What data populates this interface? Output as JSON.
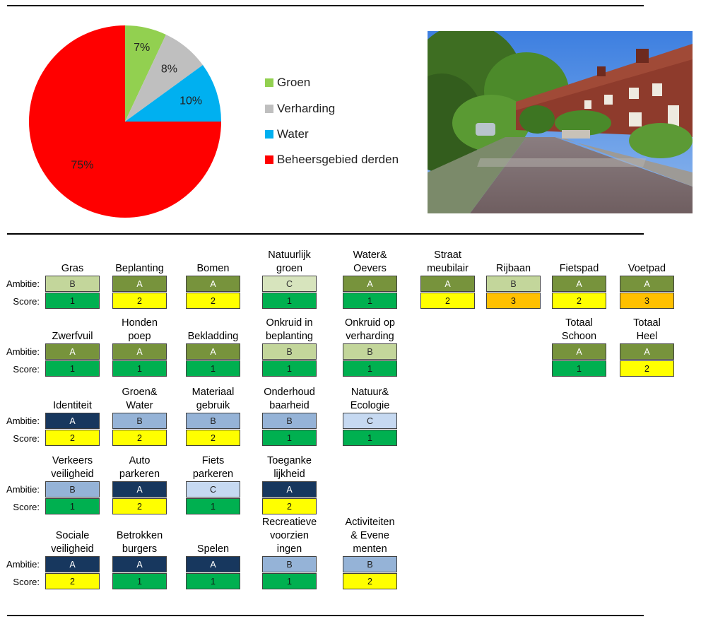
{
  "chart_data": {
    "type": "pie",
    "labels": [
      "Groen",
      "Verharding",
      "Water",
      "Beheersgebied derden"
    ],
    "values": [
      7,
      8,
      10,
      75
    ],
    "value_labels": [
      "7%",
      "8%",
      "10%",
      "75%"
    ],
    "colors": [
      "#92D050",
      "#BFBFBF",
      "#00B0F0",
      "#FF0000"
    ],
    "legend_position": "right"
  },
  "row_labels": {
    "ambitie": "Ambitie:",
    "score": "Score:"
  },
  "colors": {
    "green_dark": "#77933C",
    "green_mid": "#C3D69B",
    "green_light": "#D7E4BD",
    "navy": "#17375E",
    "blue_mid": "#95B3D7",
    "blue_light": "#C6D9F1",
    "score_green": "#00B050",
    "score_yellow": "#FFFF00",
    "score_orange": "#FFC000"
  },
  "rows": [
    {
      "cells": [
        {
          "title": [
            "Gras"
          ],
          "ambitie": "B",
          "score": "1"
        },
        {
          "title": [
            "Beplanting"
          ],
          "ambitie": "A",
          "score": "2"
        },
        {
          "title": [
            "Bomen"
          ],
          "ambitie": "A",
          "score": "2"
        },
        {
          "title": [
            "Natuurlijk",
            "groen"
          ],
          "ambitie": "C",
          "score": "1"
        },
        {
          "title": [
            "Water&",
            "Oevers"
          ],
          "ambitie": "A",
          "score": "1"
        },
        {
          "title": [
            "Straat",
            "meubilair"
          ],
          "ambitie": "A",
          "score": "2"
        },
        {
          "title": [
            "Rijbaan"
          ],
          "ambitie": "B",
          "score": "3"
        },
        {
          "title": [
            "Fietspad"
          ],
          "ambitie": "A",
          "score": "2"
        },
        {
          "title": [
            "Voetpad"
          ],
          "ambitie": "A",
          "score": "3"
        }
      ]
    },
    {
      "cells": [
        {
          "title": [
            "Zwerfvuil"
          ],
          "ambitie": "A",
          "score": "1"
        },
        {
          "title": [
            "Honden",
            "poep"
          ],
          "ambitie": "A",
          "score": "1"
        },
        {
          "title": [
            "Bekladding"
          ],
          "ambitie": "A",
          "score": "1"
        },
        {
          "title": [
            "Onkruid in",
            "beplanting"
          ],
          "ambitie": "B",
          "score": "1"
        },
        {
          "title": [
            "Onkruid op",
            "verharding"
          ],
          "ambitie": "B",
          "score": "1"
        },
        {
          "title": [
            "Totaal",
            "Schoon"
          ],
          "ambitie": "A",
          "score": "1"
        },
        {
          "title": [
            "Totaal",
            "Heel"
          ],
          "ambitie": "A",
          "score": "2"
        }
      ]
    },
    {
      "cells": [
        {
          "title": [
            "Identiteit"
          ],
          "ambitie": "A",
          "score": "2"
        },
        {
          "title": [
            "Groen&",
            "Water"
          ],
          "ambitie": "B",
          "score": "2"
        },
        {
          "title": [
            "Materiaal",
            "gebruik"
          ],
          "ambitie": "B",
          "score": "2"
        },
        {
          "title": [
            "Onderhoud",
            "baarheid"
          ],
          "ambitie": "B",
          "score": "1"
        },
        {
          "title": [
            "Natuur&",
            "Ecologie"
          ],
          "ambitie": "C",
          "score": "1"
        }
      ]
    },
    {
      "cells": [
        {
          "title": [
            "Verkeers",
            "veiligheid"
          ],
          "ambitie": "B",
          "score": "1"
        },
        {
          "title": [
            "Auto",
            "parkeren"
          ],
          "ambitie": "A",
          "score": "2"
        },
        {
          "title": [
            "Fiets",
            "parkeren"
          ],
          "ambitie": "C",
          "score": "1"
        },
        {
          "title": [
            "Toeganke",
            "lijkheid"
          ],
          "ambitie": "A",
          "score": "2"
        }
      ]
    },
    {
      "cells": [
        {
          "title": [
            "Sociale",
            "veiligheid"
          ],
          "ambitie": "A",
          "score": "2"
        },
        {
          "title": [
            "Betrokken",
            "burgers"
          ],
          "ambitie": "A",
          "score": "1"
        },
        {
          "title": [
            "Spelen"
          ],
          "ambitie": "A",
          "score": "1"
        },
        {
          "title": [
            "Recreatieve",
            "voorzien",
            "ingen"
          ],
          "ambitie": "B",
          "score": "1"
        },
        {
          "title": [
            "Activiteiten",
            "& Evene",
            "menten"
          ],
          "ambitie": "B",
          "score": "2"
        }
      ]
    }
  ]
}
